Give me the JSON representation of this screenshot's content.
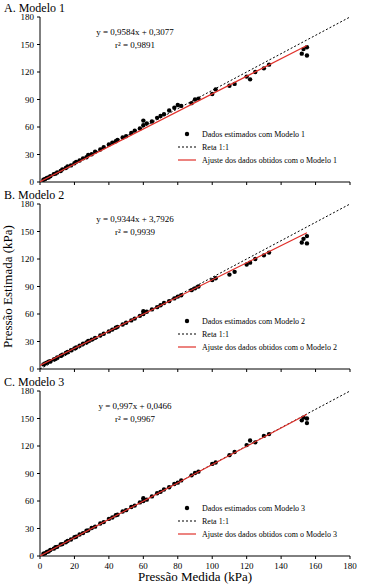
{
  "chart_data": [
    {
      "type": "scatter",
      "title": "A. Modelo 1",
      "annotations": [
        "y = 0,9584x + 0,3077",
        "r² = 0,9891"
      ],
      "xlim": [
        0,
        180
      ],
      "xticks": [
        0,
        20,
        40,
        60,
        80,
        100,
        120,
        140,
        160,
        180
      ],
      "ylim": [
        0,
        180
      ],
      "yticks": [
        0,
        30,
        60,
        90,
        120,
        150,
        180
      ],
      "grid": false,
      "legend": "bottom-right",
      "tick_labels": "y",
      "series": [
        {
          "name": "Dados estimados com Modelo 1",
          "type": "scatter",
          "marker": "circle",
          "color": "#000000",
          "x": [
            2,
            3,
            4,
            5,
            6,
            8,
            9,
            10,
            12,
            13,
            15,
            16,
            18,
            20,
            21,
            23,
            25,
            27,
            28,
            30,
            32,
            35,
            37,
            40,
            42,
            44,
            45,
            48,
            50,
            53,
            55,
            58,
            60,
            60,
            62,
            65,
            68,
            70,
            72,
            75,
            78,
            80,
            82,
            88,
            90,
            92,
            100,
            102,
            110,
            113,
            120,
            122,
            125,
            130,
            133,
            152,
            153,
            155,
            155
          ],
          "values": [
            2.5,
            3.2,
            4.5,
            5.0,
            6.4,
            8.6,
            9.1,
            10.5,
            12.0,
            13.8,
            15.2,
            16.9,
            18.1,
            20.5,
            22.0,
            23.5,
            25.8,
            27.0,
            29.5,
            30.2,
            33.0,
            35.5,
            38.0,
            41.0,
            43.0,
            44.5,
            46.0,
            48.5,
            50.0,
            53.5,
            56.0,
            58.5,
            62.0,
            67.0,
            64.0,
            66.0,
            70.0,
            72.0,
            74.0,
            78.0,
            81.0,
            84.0,
            83.0,
            86.0,
            90.0,
            91.0,
            96.0,
            101.0,
            105.0,
            107.0,
            115.0,
            112.0,
            120.0,
            124.0,
            128.0,
            140.0,
            145.0,
            138.0,
            147.0
          ]
        },
        {
          "name": "Reta 1:1",
          "type": "line",
          "line_style": "dotted",
          "color": "#000000",
          "x": [
            0,
            180
          ],
          "values": [
            0,
            180
          ]
        },
        {
          "name": "Ajuste dos dados obtidos com o Modelo 1",
          "type": "line",
          "line_style": "solid",
          "color": "#e0312b",
          "x": [
            0,
            155
          ],
          "values": [
            0.3,
            148.9
          ]
        }
      ]
    },
    {
      "type": "scatter",
      "title": "B. Modelo 2",
      "y_label": "Pressão Estimada (kPa)",
      "annotations": [
        "y = 0,9344x + 3,7926",
        "r² = 0,9939"
      ],
      "xlim": [
        0,
        180
      ],
      "xticks": [
        0,
        20,
        40,
        60,
        80,
        100,
        120,
        140,
        160,
        180
      ],
      "ylim": [
        0,
        180
      ],
      "yticks": [
        0,
        30,
        60,
        90,
        120,
        150,
        180
      ],
      "grid": false,
      "legend": "bottom-right",
      "tick_labels": "y",
      "series": [
        {
          "name": "Dados estimados com Modelo 2",
          "type": "scatter",
          "marker": "circle",
          "color": "#000000",
          "x": [
            2,
            3,
            4,
            5,
            6,
            8,
            9,
            10,
            12,
            13,
            15,
            16,
            18,
            20,
            21,
            23,
            25,
            27,
            28,
            30,
            32,
            35,
            37,
            40,
            42,
            44,
            45,
            48,
            50,
            53,
            55,
            58,
            60,
            60,
            62,
            65,
            68,
            70,
            72,
            75,
            78,
            80,
            82,
            88,
            90,
            92,
            100,
            102,
            110,
            113,
            120,
            122,
            125,
            130,
            133,
            152,
            153,
            155,
            155
          ],
          "values": [
            5.0,
            6.0,
            7.0,
            8.0,
            8.5,
            10.5,
            11.0,
            12.5,
            14.5,
            15.5,
            17.5,
            18.5,
            20.5,
            22.5,
            23.5,
            25.5,
            27.5,
            29.0,
            30.5,
            32.0,
            34.0,
            36.5,
            38.5,
            41.0,
            43.0,
            45.0,
            46.0,
            48.5,
            50.5,
            53.0,
            55.0,
            58.0,
            60.0,
            63.0,
            62.5,
            65.0,
            67.5,
            69.5,
            72.0,
            74.0,
            77.0,
            79.0,
            80.5,
            86.0,
            88.0,
            90.0,
            97.0,
            99.0,
            103.0,
            106.0,
            114.0,
            116.0,
            120.0,
            124.0,
            127.0,
            138.0,
            142.0,
            137.0,
            145.0
          ]
        },
        {
          "name": "Reta 1:1",
          "type": "line",
          "line_style": "dotted",
          "color": "#000000",
          "x": [
            0,
            180
          ],
          "values": [
            0,
            180
          ]
        },
        {
          "name": "Ajuste dos dados obtidos com o Modelo 2",
          "type": "line",
          "line_style": "solid",
          "color": "#e0312b",
          "x": [
            0,
            155
          ],
          "values": [
            3.8,
            148.6
          ]
        }
      ]
    },
    {
      "type": "scatter",
      "title": "C. Modelo 3",
      "x_label": "Pressão Medida (kPa)",
      "annotations": [
        "y = 0,997x + 0,0466",
        "r² = 0,9967"
      ],
      "xlim": [
        0,
        180
      ],
      "xticks": [
        0,
        20,
        40,
        60,
        80,
        100,
        120,
        140,
        160,
        180
      ],
      "ylim": [
        0,
        180
      ],
      "yticks": [
        0,
        30,
        60,
        90,
        120,
        150,
        180
      ],
      "grid": false,
      "legend": "bottom-right",
      "tick_labels": true,
      "series": [
        {
          "name": "Dados estimados com Modelo 3",
          "type": "scatter",
          "marker": "circle",
          "color": "#000000",
          "x": [
            2,
            3,
            4,
            5,
            6,
            8,
            9,
            10,
            12,
            13,
            15,
            16,
            18,
            20,
            21,
            23,
            25,
            27,
            28,
            30,
            32,
            35,
            37,
            40,
            42,
            44,
            45,
            48,
            50,
            53,
            55,
            58,
            60,
            60,
            62,
            65,
            68,
            70,
            72,
            75,
            78,
            80,
            82,
            88,
            90,
            92,
            100,
            102,
            110,
            113,
            120,
            122,
            125,
            130,
            133,
            152,
            153,
            155,
            155
          ],
          "values": [
            2.5,
            3.0,
            4.5,
            5.0,
            6.5,
            8.0,
            9.5,
            10.0,
            12.5,
            13.0,
            15.0,
            16.5,
            18.0,
            20.5,
            21.0,
            23.5,
            25.0,
            27.5,
            28.0,
            30.5,
            32.0,
            35.5,
            37.0,
            40.5,
            42.0,
            44.5,
            45.0,
            48.5,
            50.0,
            53.5,
            55.0,
            58.5,
            60.0,
            63.0,
            61.5,
            65.0,
            68.5,
            70.0,
            72.5,
            75.0,
            78.5,
            80.0,
            82.5,
            88.0,
            90.5,
            92.0,
            100.5,
            102.0,
            110.0,
            113.5,
            121.0,
            126.0,
            124.0,
            131.0,
            133.0,
            148.0,
            151.0,
            145.0,
            150.0
          ]
        },
        {
          "name": "Reta 1:1",
          "type": "line",
          "line_style": "dotted",
          "color": "#000000",
          "x": [
            0,
            180
          ],
          "values": [
            0,
            180
          ]
        },
        {
          "name": "Ajuste dos dados obtidos com o Modelo 3",
          "type": "line",
          "line_style": "solid",
          "color": "#e0312b",
          "x": [
            0,
            155
          ],
          "values": [
            0.05,
            154.6
          ]
        }
      ]
    }
  ]
}
